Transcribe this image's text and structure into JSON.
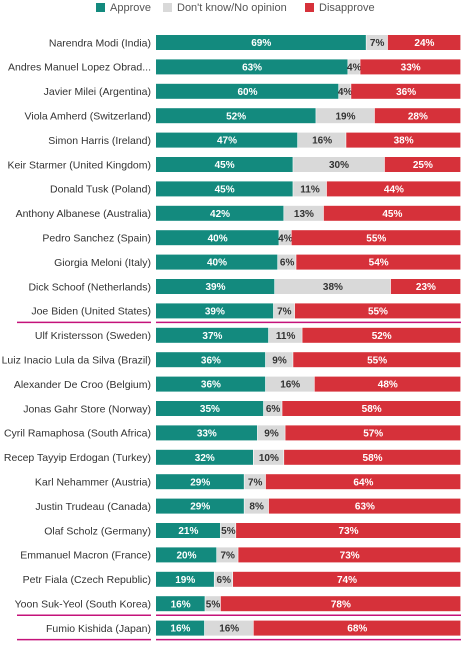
{
  "chart_data": {
    "type": "bar",
    "orientation": "horizontal",
    "stacked": true,
    "legend": "top",
    "grid": false,
    "categories": [
      "Narendra Modi (India)",
      "Andres Manuel Lopez Obrad...",
      "Javier Milei (Argentina)",
      "Viola Amherd (Switzerland)",
      "Simon Harris (Ireland)",
      "Keir Starmer (United Kingdom)",
      "Donald Tusk (Poland)",
      "Anthony Albanese (Australia)",
      "Pedro Sanchez (Spain)",
      "Giorgia Meloni (Italy)",
      "Dick Schoof (Netherlands)",
      "Joe Biden (United States)",
      "Ulf Kristersson (Sweden)",
      "Luiz Inacio Lula da Silva (Brazil)",
      "Alexander De Croo (Belgium)",
      "Jonas Gahr Store (Norway)",
      "Cyril Ramaphosa (South Africa)",
      "Recep Tayyip Erdogan (Turkey)",
      "Karl Nehammer (Austria)",
      "Justin Trudeau (Canada)",
      "Olaf Scholz (Germany)",
      "Emmanuel Macron (France)",
      "Petr Fiala (Czech Republic)",
      "Yoon Suk-Yeol (South Korea)",
      "Fumio Kishida (Japan)"
    ],
    "highlighted": [
      "Joe Biden (United States)",
      "Yoon Suk-Yeol (South Korea)",
      "Fumio Kishida (Japan)"
    ],
    "series": [
      {
        "name": "Approve",
        "color": "#138a7e",
        "values": [
          69,
          63,
          60,
          52,
          47,
          45,
          45,
          42,
          40,
          40,
          39,
          39,
          37,
          36,
          36,
          35,
          33,
          32,
          29,
          29,
          21,
          20,
          19,
          16,
          16
        ]
      },
      {
        "name": "Don't know/No opinion",
        "color": "#d9d9d9",
        "values": [
          7,
          4,
          4,
          19,
          16,
          30,
          11,
          13,
          4,
          6,
          38,
          7,
          11,
          9,
          16,
          6,
          9,
          10,
          7,
          8,
          5,
          7,
          6,
          5,
          16
        ]
      },
      {
        "name": "Disapprove",
        "color": "#d6313a",
        "values": [
          24,
          33,
          36,
          28,
          38,
          25,
          44,
          45,
          55,
          54,
          23,
          55,
          52,
          55,
          48,
          58,
          57,
          58,
          64,
          63,
          73,
          73,
          74,
          78,
          68
        ]
      }
    ],
    "value_labels": [
      [
        "69%",
        "7%",
        "24%"
      ],
      [
        "63%",
        "4%",
        "33%"
      ],
      [
        "60%",
        "4%",
        "36%"
      ],
      [
        "52%",
        "19%",
        "28%"
      ],
      [
        "47%",
        "16%",
        "38%"
      ],
      [
        "45%",
        "30%",
        "25%"
      ],
      [
        "45%",
        "11%",
        "44%"
      ],
      [
        "42%",
        "13%",
        "45%"
      ],
      [
        "40%",
        "4%",
        "55%"
      ],
      [
        "40%",
        "6%",
        "54%"
      ],
      [
        "39%",
        "38%",
        "23%"
      ],
      [
        "39%",
        "7%",
        "55%"
      ],
      [
        "37%",
        "11%",
        "52%"
      ],
      [
        "36%",
        "9%",
        "55%"
      ],
      [
        "36%",
        "16%",
        "48%"
      ],
      [
        "35%",
        "6%",
        "58%"
      ],
      [
        "33%",
        "9%",
        "57%"
      ],
      [
        "32%",
        "10%",
        "58%"
      ],
      [
        "29%",
        "7%",
        "64%"
      ],
      [
        "29%",
        "8%",
        "63%"
      ],
      [
        "21%",
        "5%",
        "73%"
      ],
      [
        "20%",
        "7%",
        "73%"
      ],
      [
        "19%",
        "6%",
        "74%"
      ],
      [
        "16%",
        "5%",
        "78%"
      ],
      [
        "16%",
        "16%",
        "68%"
      ]
    ],
    "highlight_color": "#c4127a",
    "xlim": [
      0,
      100
    ]
  }
}
